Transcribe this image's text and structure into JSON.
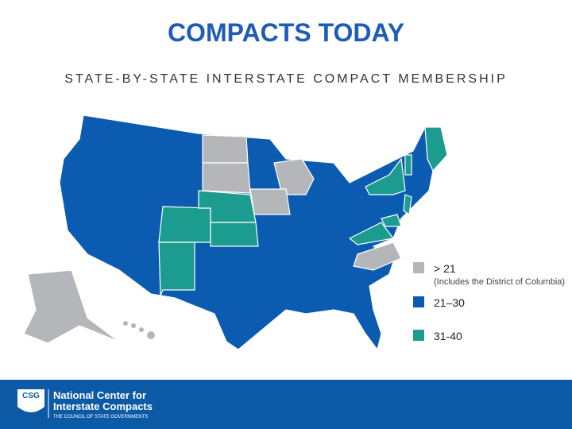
{
  "header": {
    "title": "COMPACTS TODAY",
    "subtitle": "STATE-BY-STATE INTERSTATE COMPACT MEMBERSHIP"
  },
  "legend": {
    "items": [
      {
        "label": "> 21",
        "note": "(Includes the District of Columbia)",
        "color": "#b4b6b9"
      },
      {
        "label": "21–30",
        "color": "#0b5cb0"
      },
      {
        "label": "31-40",
        "color": "#1c9c8e"
      }
    ]
  },
  "footer": {
    "logo": "CSG",
    "name_line1": "National Center for",
    "name_line2": "Interstate Compacts",
    "tagline": "THE COUNCIL OF STATE GOVERNMENTS"
  }
}
